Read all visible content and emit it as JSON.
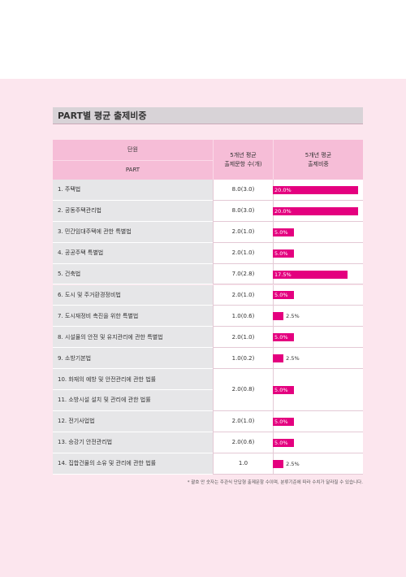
{
  "header": {
    "title": "PART별 평균 출제비중"
  },
  "table": {
    "columns": {
      "unit": "단원",
      "part": "PART",
      "count": "5개년 평균\n출제문항 수(개)",
      "share": "5개년 평균\n출제비중"
    },
    "rows": [
      {
        "units": [
          "1. 주택법"
        ],
        "count": "8.0(3.0)",
        "share": 20.0,
        "share_label": "20.0%"
      },
      {
        "units": [
          "2. 공동주택관리법"
        ],
        "count": "8.0(3.0)",
        "share": 20.0,
        "share_label": "20.0%"
      },
      {
        "units": [
          "3. 민간임대주택에 관한 특별법"
        ],
        "count": "2.0(1.0)",
        "share": 5.0,
        "share_label": "5.0%"
      },
      {
        "units": [
          "4. 공공주택 특별법"
        ],
        "count": "2.0(1.0)",
        "share": 5.0,
        "share_label": "5.0%"
      },
      {
        "units": [
          "5. 건축법"
        ],
        "count": "7.0(2.8)",
        "share": 17.5,
        "share_label": "17.5%"
      },
      {
        "units": [
          "6. 도시 및 주거환경정비법"
        ],
        "count": "2.0(1.0)",
        "share": 5.0,
        "share_label": "5.0%"
      },
      {
        "units": [
          "7. 도시재정비 촉진을 위한 특별법"
        ],
        "count": "1.0(0.6)",
        "share": 2.5,
        "share_label": "2.5%"
      },
      {
        "units": [
          "8. 시설물의 안전 및 유지관리에 관한 특별법"
        ],
        "count": "2.0(1.0)",
        "share": 5.0,
        "share_label": "5.0%"
      },
      {
        "units": [
          "9. 소방기본법"
        ],
        "count": "1.0(0.2)",
        "share": 2.5,
        "share_label": "2.5%"
      },
      {
        "units": [
          "10. 화재의 예방 및 안전관리에 관한 법률",
          "11. 소방시설 설치 및 관리에 관한 법률"
        ],
        "count": "2.0(0.8)",
        "share": 5.0,
        "share_label": "5.0%"
      },
      {
        "units": [
          "12. 전기사업법"
        ],
        "count": "2.0(1.0)",
        "share": 5.0,
        "share_label": "5.0%"
      },
      {
        "units": [
          "13. 승강기 안전관리법"
        ],
        "count": "2.0(0.6)",
        "share": 5.0,
        "share_label": "5.0%"
      },
      {
        "units": [
          "14. 집합건물의 소유 및 관리에 관한 법률"
        ],
        "count": "1.0",
        "share": 2.5,
        "share_label": "2.5%"
      }
    ]
  },
  "footnote": "* 괄호 안 숫자는 주관식 단답형 출제문항 수이며, 분류기준에 따라 수치가 달라질 수 있습니다."
}
